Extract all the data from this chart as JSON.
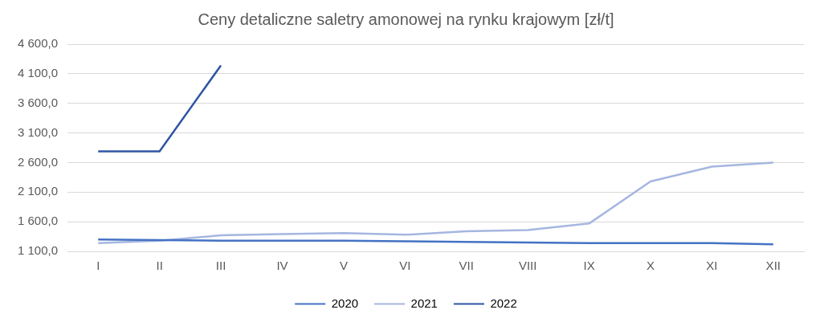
{
  "chart_data": {
    "type": "line",
    "title": "Ceny detaliczne saletry amonowej na rynku krajowym [zł/t]",
    "categories": [
      "I",
      "II",
      "III",
      "IV",
      "V",
      "VI",
      "VII",
      "VIII",
      "IX",
      "X",
      "XI",
      "XII"
    ],
    "series": [
      {
        "name": "2020",
        "color": "#4472c4",
        "values": [
          1300,
          1290,
          1280,
          1280,
          1280,
          1270,
          1260,
          1250,
          1240,
          1240,
          1240,
          1220
        ]
      },
      {
        "name": "2021",
        "color": "#a5b6e0",
        "values": [
          1240,
          1280,
          1370,
          1390,
          1410,
          1380,
          1440,
          1460,
          1570,
          2280,
          2530,
          2600
        ]
      },
      {
        "name": "2022",
        "color": "#2f55a4",
        "values": [
          2790,
          2790,
          4240,
          null,
          null,
          null,
          null,
          null,
          null,
          null,
          null,
          null
        ]
      }
    ],
    "ylim": [
      1100,
      4600
    ],
    "yticks": [
      {
        "value": 1100,
        "label": "1 100,0"
      },
      {
        "value": 1600,
        "label": "1 600,0"
      },
      {
        "value": 2100,
        "label": "2 100,0"
      },
      {
        "value": 2600,
        "label": "2 600,0"
      },
      {
        "value": 3100,
        "label": "3 100,0"
      },
      {
        "value": 3600,
        "label": "3 600,0"
      },
      {
        "value": 4100,
        "label": "4 100,0"
      },
      {
        "value": 4600,
        "label": "4 600,0"
      }
    ],
    "grid": "y",
    "legend": "bottom",
    "marker": "none",
    "line_style": "solid"
  }
}
